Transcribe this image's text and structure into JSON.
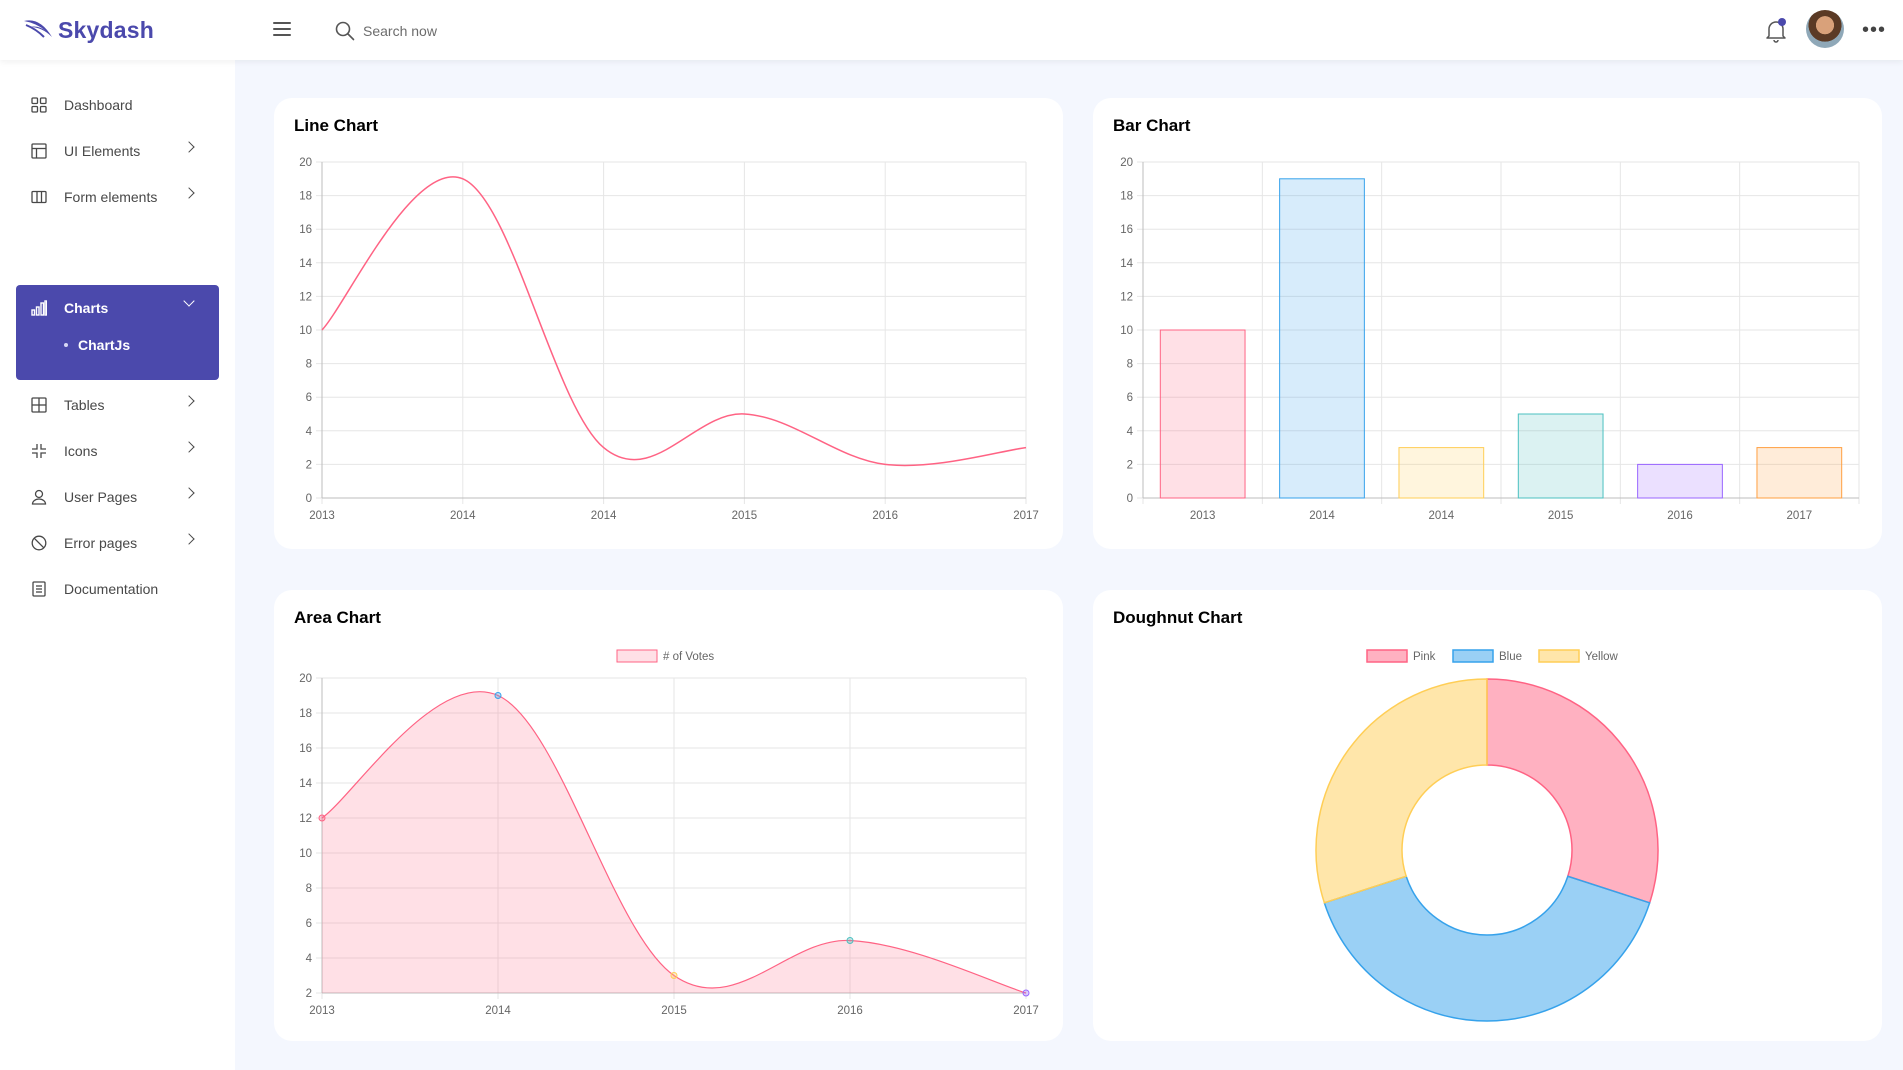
{
  "app": {
    "brand": "Skydash"
  },
  "search": {
    "placeholder": "Search now"
  },
  "sidebar": {
    "items": [
      {
        "label": "Dashboard",
        "icon": "grid-icon",
        "has_children": false
      },
      {
        "label": "UI Elements",
        "icon": "layout-icon",
        "has_children": true
      },
      {
        "label": "Form elements",
        "icon": "columns-icon",
        "has_children": true
      },
      {
        "label": "Charts",
        "icon": "bar-chart-icon",
        "has_children": true,
        "active": true,
        "children": [
          {
            "label": "ChartJs"
          }
        ]
      },
      {
        "label": "Tables",
        "icon": "table-icon",
        "has_children": true
      },
      {
        "label": "Icons",
        "icon": "minimize-icon",
        "has_children": true
      },
      {
        "label": "User Pages",
        "icon": "user-icon",
        "has_children": true
      },
      {
        "label": "Error pages",
        "icon": "ban-icon",
        "has_children": true
      },
      {
        "label": "Documentation",
        "icon": "document-icon",
        "has_children": false
      }
    ]
  },
  "colors": {
    "brand": "#4b49ac",
    "pink": "#ff6384",
    "blue": "#36a2eb",
    "yellow": "#ffce56",
    "teal": "#4bc0c0",
    "purple": "#9966ff",
    "orange": "#ff9f40"
  },
  "chart_data": [
    {
      "type": "line",
      "title": "Line Chart",
      "categories": [
        "2013",
        "2014",
        "2014",
        "2015",
        "2016",
        "2017"
      ],
      "values": [
        10,
        19,
        3,
        5,
        2,
        3
      ],
      "ylim": [
        0,
        20
      ],
      "yticks": [
        0,
        2,
        4,
        6,
        8,
        10,
        12,
        14,
        16,
        18,
        20
      ],
      "grid": true,
      "legend": "none"
    },
    {
      "type": "bar",
      "title": "Bar Chart",
      "categories": [
        "2013",
        "2014",
        "2014",
        "2015",
        "2016",
        "2017"
      ],
      "values": [
        10,
        19,
        3,
        5,
        2,
        3
      ],
      "bar_colors": [
        "pink",
        "blue",
        "yellow",
        "teal",
        "purple",
        "orange"
      ],
      "ylim": [
        0,
        20
      ],
      "yticks": [
        0,
        2,
        4,
        6,
        8,
        10,
        12,
        14,
        16,
        18,
        20
      ],
      "grid": true,
      "legend": "none"
    },
    {
      "type": "area",
      "title": "Area Chart",
      "categories": [
        "2013",
        "2014",
        "2015",
        "2016",
        "2017"
      ],
      "series": [
        {
          "name": "# of Votes",
          "values": [
            12,
            19,
            3,
            5,
            2
          ]
        }
      ],
      "point_colors": [
        "pink",
        "blue",
        "yellow",
        "teal",
        "purple"
      ],
      "ylim": [
        2,
        20
      ],
      "yticks": [
        2,
        4,
        6,
        8,
        10,
        12,
        14,
        16,
        18,
        20
      ],
      "grid": true,
      "legend": "top"
    },
    {
      "type": "pie",
      "title": "Doughnut Chart",
      "categories": [
        "Pink",
        "Blue",
        "Yellow"
      ],
      "values": [
        30,
        40,
        30
      ],
      "slice_colors": [
        "pink",
        "blue",
        "yellow"
      ],
      "legend": "top"
    }
  ]
}
